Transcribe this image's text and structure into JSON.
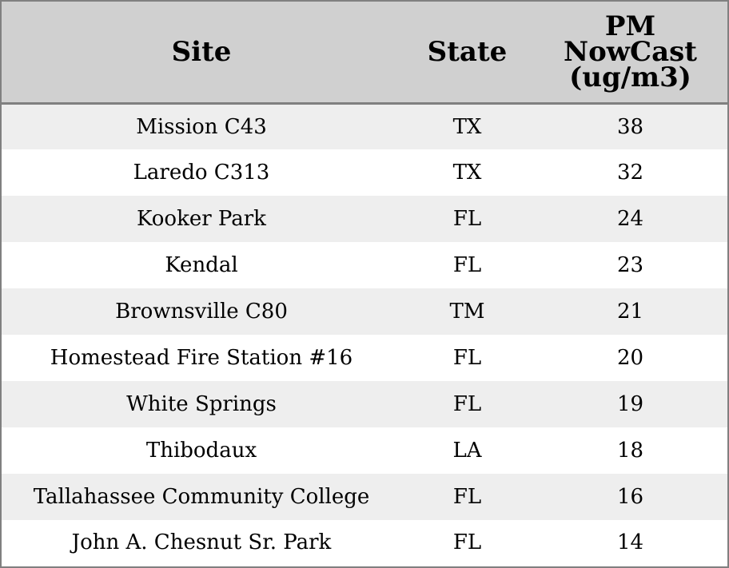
{
  "chart_data": {
    "type": "table",
    "columns": [
      "Site",
      "State",
      "PM NowCast (ug/m3)"
    ],
    "header_lines": {
      "site": [
        "Site"
      ],
      "state": [
        "State"
      ],
      "value": [
        "PM",
        "NowCast",
        "(ug/m3)"
      ]
    },
    "rows": [
      {
        "site": "Mission C43",
        "state": "TX",
        "value": "38"
      },
      {
        "site": "Laredo C313",
        "state": "TX",
        "value": "32"
      },
      {
        "site": "Kooker Park",
        "state": "FL",
        "value": "24"
      },
      {
        "site": "Kendal",
        "state": "FL",
        "value": "23"
      },
      {
        "site": "Brownsville C80",
        "state": "TM",
        "value": "21"
      },
      {
        "site": "Homestead Fire Station #16",
        "state": "FL",
        "value": "20"
      },
      {
        "site": "White Springs",
        "state": "FL",
        "value": "19"
      },
      {
        "site": "Thibodaux",
        "state": "LA",
        "value": "18"
      },
      {
        "site": "Tallahassee Community College",
        "state": "FL",
        "value": "16"
      },
      {
        "site": "John A. Chesnut Sr. Park",
        "state": "FL",
        "value": "14"
      }
    ]
  },
  "colors": {
    "header_background": "#d0d0d0",
    "row_shaded": "#eeeeee",
    "row_plain": "#ffffff",
    "border": "#808080"
  }
}
